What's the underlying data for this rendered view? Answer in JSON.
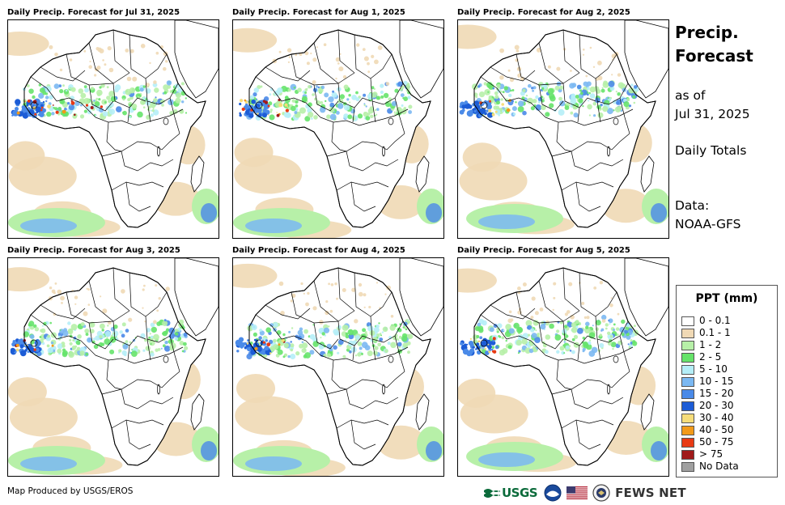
{
  "panels": [
    {
      "title": "Daily Precip. Forecast for Jul 31, 2025"
    },
    {
      "title": "Daily Precip. Forecast for Aug 1, 2025"
    },
    {
      "title": "Daily Precip. Forecast for Aug 2, 2025"
    },
    {
      "title": "Daily Precip. Forecast for Aug 3, 2025"
    },
    {
      "title": "Daily Precip. Forecast for Aug 4, 2025"
    },
    {
      "title": "Daily Precip. Forecast for Aug 5, 2025"
    }
  ],
  "side": {
    "title_line1": "Precip.",
    "title_line2": "Forecast",
    "as_of_line1": "as of",
    "as_of_line2": "Jul 31, 2025",
    "totals": "Daily Totals",
    "data_line1": "Data:",
    "data_line2": "NOAA-GFS"
  },
  "legend": {
    "title": "PPT (mm)",
    "items": [
      {
        "label": "0 - 0.1",
        "color": "#ffffff"
      },
      {
        "label": "0.1 - 1",
        "color": "#f0d9b5"
      },
      {
        "label": "1 - 2",
        "color": "#b7f0a8"
      },
      {
        "label": "2 - 5",
        "color": "#66e36a"
      },
      {
        "label": "5 - 10",
        "color": "#b5eef7"
      },
      {
        "label": "10 - 15",
        "color": "#7bb8f2"
      },
      {
        "label": "15 - 20",
        "color": "#4a8ae8"
      },
      {
        "label": "20 - 30",
        "color": "#1c5cd6"
      },
      {
        "label": "30 - 40",
        "color": "#f6dd7a"
      },
      {
        "label": "40 - 50",
        "color": "#f29a1a"
      },
      {
        "label": "50 - 75",
        "color": "#e83a14"
      },
      {
        "label": "> 75",
        "color": "#a01a1a"
      },
      {
        "label": "No Data",
        "color": "#a0a0a0"
      }
    ]
  },
  "footer": {
    "produced_by": "Map Produced by USGS/EROS",
    "usgs_text": "USGS",
    "fews_text": "FEWS NET"
  }
}
